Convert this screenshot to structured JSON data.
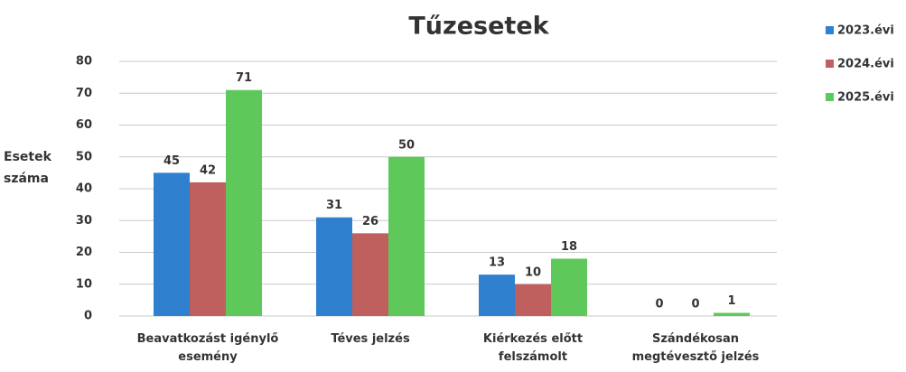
{
  "chart_data": {
    "type": "bar",
    "title": "Tűzesetek",
    "y_label": "Esetek száma",
    "categories": [
      "Beavatkozást igénylő esemény",
      "Téves jelzés",
      "Kiérkezés előtt felszámolt",
      "Szándékosan megtévesztő jelzés"
    ],
    "series": [
      {
        "name": "2023.évi",
        "color": "#2f80cf",
        "values": [
          45,
          31,
          13,
          0
        ]
      },
      {
        "name": "2024.évi",
        "color": "#c0605e",
        "values": [
          42,
          26,
          10,
          0
        ]
      },
      {
        "name": "2025.évi",
        "color": "#5ec85a",
        "values": [
          71,
          50,
          18,
          1
        ]
      }
    ],
    "ylim": [
      0,
      80
    ],
    "yticks": [
      0,
      10,
      20,
      30,
      40,
      50,
      60,
      70,
      80
    ],
    "grid": true,
    "legend": "top-right"
  }
}
